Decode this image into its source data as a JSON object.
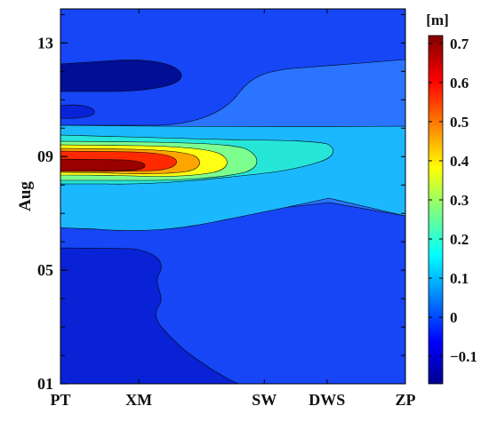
{
  "chart_data": {
    "type": "heatmap",
    "subtype": "filled-contour",
    "title": "",
    "xlabel": "",
    "ylabel": "Aug",
    "x_categories": [
      "PT",
      "XM",
      "SW",
      "DWS",
      "ZP"
    ],
    "x_positions": [
      0,
      1,
      2.6,
      3.4,
      4.4
    ],
    "xlim": [
      0,
      4.4
    ],
    "y_tick_labels": [
      "01",
      "05",
      "09",
      "13"
    ],
    "y_ticks": [
      1,
      5,
      9,
      13
    ],
    "ylim": [
      1,
      14.2
    ],
    "colorbar": {
      "unit_label": "[m]",
      "range": [
        -0.17,
        0.72
      ],
      "tick_labels": [
        "−0.1",
        "0",
        "0.1",
        "0.2",
        "0.3",
        "0.4",
        "0.5",
        "0.6",
        "0.7"
      ],
      "ticks": [
        -0.1,
        0,
        0.1,
        0.2,
        0.3,
        0.4,
        0.5,
        0.6,
        0.7
      ],
      "colormap": "jet"
    },
    "contour_levels": [
      -0.1,
      0,
      0.1,
      0.2,
      0.3,
      0.4,
      0.5,
      0.6
    ],
    "features": {
      "maximum": {
        "x_station": "PT",
        "y_day": 8.5,
        "value": 0.7
      },
      "minimum": {
        "x_station": "PT",
        "y_day": 11.8,
        "value": -0.15
      }
    }
  }
}
